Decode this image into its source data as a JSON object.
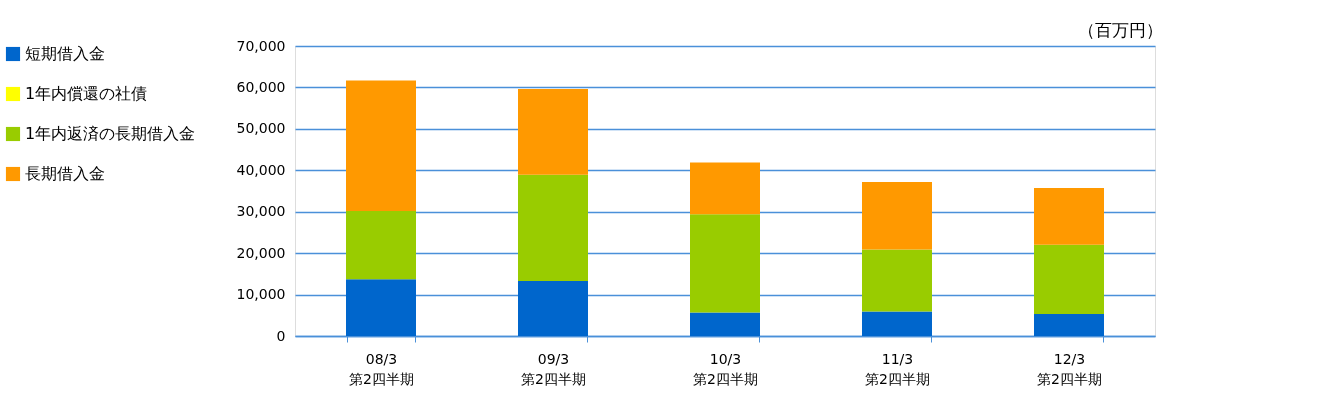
{
  "chart_data": {
    "type": "bar",
    "stacked": true,
    "categories": [
      "08/3\n第2四半期",
      "09/3\n第2四半期",
      "10/3\n第2四半期",
      "11/3\n第2四半期",
      "12/3\n第2四半期"
    ],
    "series": [
      {
        "name": "短期借入金",
        "color": "#0066cc",
        "values": [
          13700,
          13300,
          5700,
          5900,
          5300
        ]
      },
      {
        "name": "1年内償還の社債",
        "color": "#ffff00",
        "values": [
          0,
          0,
          0,
          0,
          0
        ]
      },
      {
        "name": "1年内返済の長期借入金",
        "color": "#99cc00",
        "values": [
          16500,
          25600,
          23700,
          15000,
          16700
        ]
      },
      {
        "name": "長期借入金",
        "color": "#ff9900",
        "values": [
          31500,
          20700,
          12500,
          16300,
          13700
        ]
      }
    ],
    "ylim": [
      0,
      70000
    ],
    "yticks": [
      0,
      {
        "value": 10000,
        "label": "10,000"
      },
      {
        "value": 20000,
        "label": "20,000"
      },
      {
        "value": 30000,
        "label": "30,000"
      },
      {
        "value": 40000,
        "label": "40,000"
      },
      {
        "value": 50000,
        "label": "50,000"
      },
      {
        "value": 60000,
        "label": "60,000"
      },
      {
        "value": 70000,
        "label": "70,000"
      }
    ],
    "grid": "y",
    "legend": "left",
    "annotations": [
      "（百万円）"
    ]
  }
}
